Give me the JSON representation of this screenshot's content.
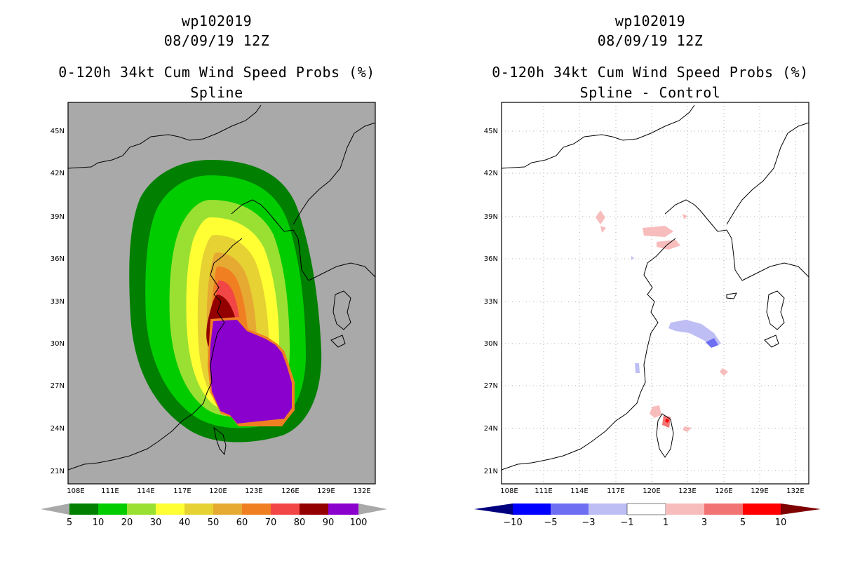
{
  "left_panel": {
    "storm_id": "wp102019",
    "datetime": "08/09/19 12Z",
    "product": "0-120h 34kt Cum Wind Speed Probs (%)",
    "subtitle": "Spline",
    "background_color": "#a9a9a9",
    "colorbar": {
      "labels": [
        "5",
        "10",
        "20",
        "30",
        "40",
        "50",
        "60",
        "70",
        "80",
        "90",
        "100"
      ],
      "colors": [
        "#007f00",
        "#00cc00",
        "#99e033",
        "#ffff33",
        "#e6d233",
        "#e6aa33",
        "#f07f22",
        "#f24646",
        "#930000",
        "#8a00cc"
      ],
      "end_color": "#a9a9a9"
    }
  },
  "right_panel": {
    "storm_id": "wp102019",
    "datetime": "08/09/19 12Z",
    "product": "0-120h 34kt Cum Wind Speed Probs (%)",
    "subtitle": "Spline - Control",
    "background_color": "#ffffff",
    "colorbar": {
      "labels": [
        "−10",
        "−5",
        "−3",
        "−1",
        "1",
        "3",
        "5",
        "10"
      ],
      "colors": [
        "#0000ff",
        "#6e6ef2",
        "#bebef5",
        "#ffffff",
        "#f7bcbc",
        "#f27373",
        "#ff0000"
      ],
      "low_end_color": "#00007f",
      "high_end_color": "#7f0000"
    }
  },
  "axes": {
    "lon_labels": [
      "108E",
      "111E",
      "114E",
      "117E",
      "120E",
      "123E",
      "126E",
      "129E",
      "132E"
    ],
    "lat_labels": [
      "21N",
      "24N",
      "27N",
      "30N",
      "33N",
      "36N",
      "39N",
      "42N",
      "45N"
    ]
  }
}
